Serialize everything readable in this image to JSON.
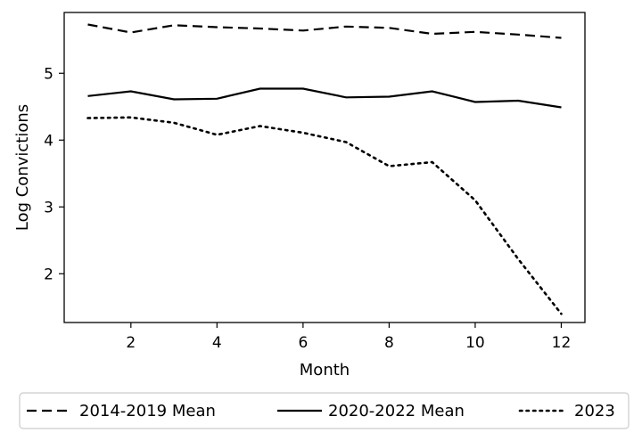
{
  "chart_data": {
    "type": "line",
    "title": "",
    "xlabel": "Month",
    "ylabel": "Log Convictions",
    "xlim": [
      0.45,
      12.55
    ],
    "ylim": [
      1.27,
      5.91
    ],
    "xticks": [
      2,
      4,
      6,
      8,
      10,
      12
    ],
    "yticks": [
      2,
      3,
      4,
      5
    ],
    "grid": false,
    "legend_position": "bottom-outside",
    "x": [
      1,
      2,
      3,
      4,
      5,
      6,
      7,
      8,
      9,
      10,
      11,
      12
    ],
    "series": [
      {
        "name": "2014-2019 Mean",
        "style": "dashed",
        "color": "#000000",
        "values": [
          5.73,
          5.61,
          5.72,
          5.69,
          5.67,
          5.64,
          5.7,
          5.68,
          5.59,
          5.62,
          5.58,
          5.53
        ]
      },
      {
        "name": "2020-2022 Mean",
        "style": "solid",
        "color": "#000000",
        "values": [
          4.66,
          4.73,
          4.61,
          4.62,
          4.77,
          4.77,
          4.64,
          4.65,
          4.73,
          4.57,
          4.59,
          4.49
        ]
      },
      {
        "name": "2023",
        "style": "dotted",
        "color": "#000000",
        "values": [
          4.33,
          4.34,
          4.26,
          4.08,
          4.21,
          4.11,
          3.97,
          3.61,
          3.67,
          3.1,
          2.22,
          1.4
        ]
      }
    ]
  }
}
